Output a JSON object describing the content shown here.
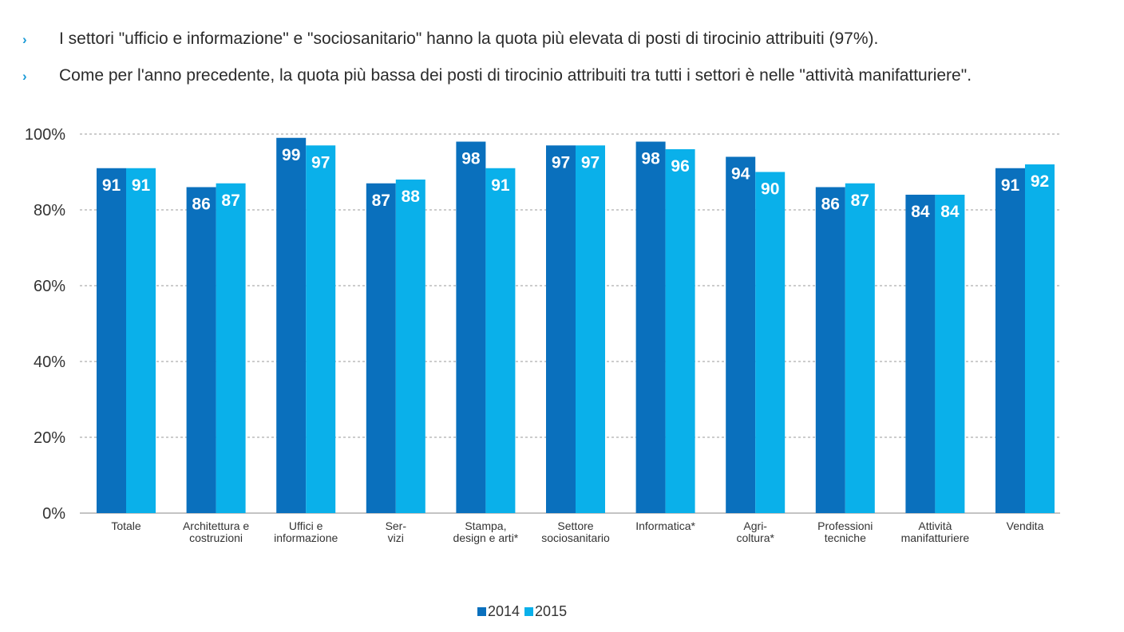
{
  "bullets": [
    {
      "marker": "›",
      "text": "I settori \"ufficio e informazione\" e \"sociosanitario\" hanno la quota più elevata di posti di tirocinio attribuiti (97%)."
    },
    {
      "marker": "›",
      "text": "Come per l'anno precedente, la quota più bassa dei posti di tirocinio attribuiti tra tutti i settori è nelle \"attività manifatturiere\"."
    }
  ],
  "chart_data": {
    "type": "bar",
    "categories": [
      [
        "Totale"
      ],
      [
        "Architettura e",
        "costruzioni"
      ],
      [
        "Uffici e",
        "informazione"
      ],
      [
        "Ser-",
        "vizi"
      ],
      [
        "Stampa,",
        "design e arti*"
      ],
      [
        "Settore",
        "sociosanitario"
      ],
      [
        "Informatica*"
      ],
      [
        "Agri-",
        "coltura*"
      ],
      [
        "Professioni",
        "tecniche"
      ],
      [
        "Attività",
        "manifatturiere"
      ],
      [
        "Vendita"
      ]
    ],
    "series": [
      {
        "name": "2014",
        "color": "#0a70bd",
        "values": [
          91,
          86,
          99,
          87,
          98,
          97,
          98,
          94,
          86,
          84,
          91
        ]
      },
      {
        "name": "2015",
        "color": "#0ab0ea",
        "values": [
          91,
          87,
          97,
          88,
          91,
          97,
          96,
          90,
          87,
          84,
          92
        ]
      }
    ],
    "ylim": [
      0,
      100
    ],
    "yticks": [
      "0%",
      "20%",
      "40%",
      "60%",
      "80%",
      "100%"
    ],
    "grid": true,
    "legend_position": "bottom-center"
  }
}
